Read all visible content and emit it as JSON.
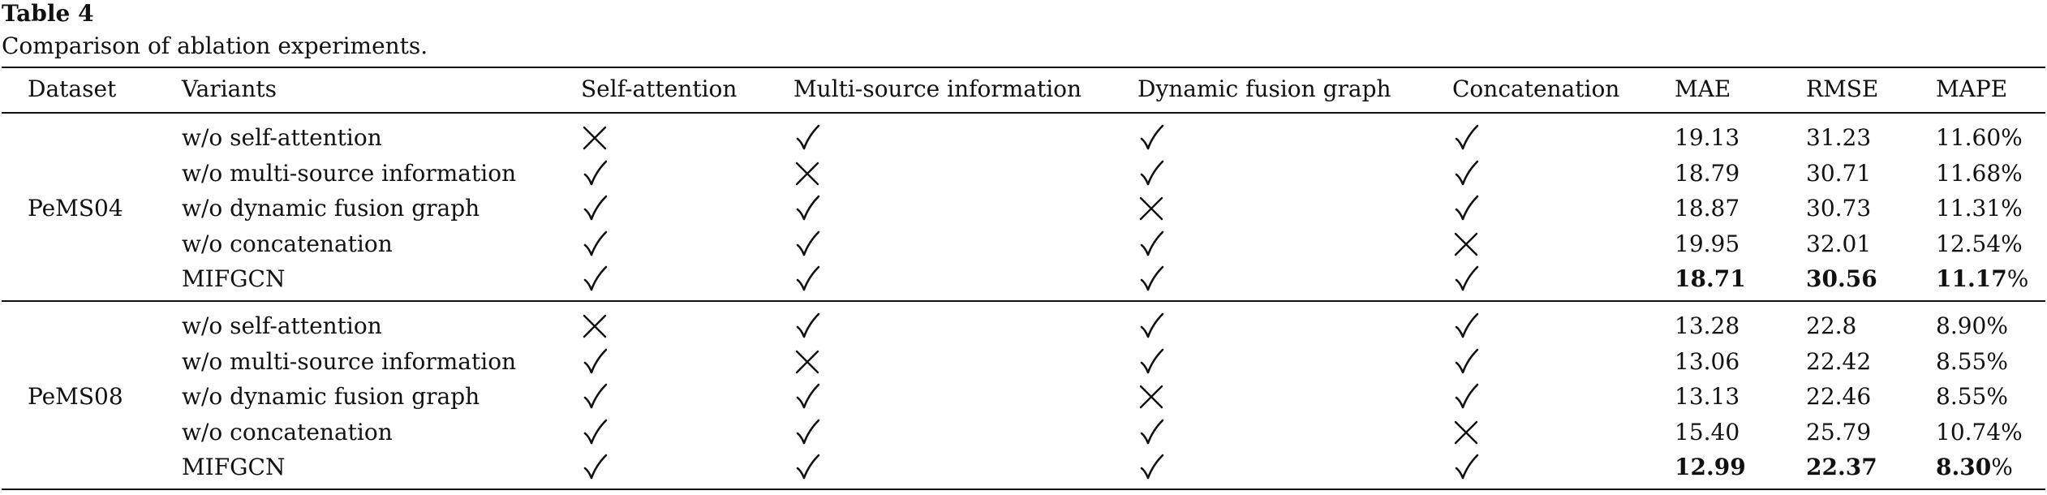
{
  "title": "Table 4",
  "caption": "Comparison of ablation experiments.",
  "headers": [
    "Dataset",
    "Variants",
    "Self-attention",
    "Multi-source information",
    "Dynamic fusion graph",
    "Concatenation",
    "MAE",
    "RMSE",
    "MAPE"
  ],
  "groups": [
    {
      "dataset": "PeMS04",
      "rows": [
        {
          "variant": "w/o self-attention",
          "marks": [
            "cross",
            "check",
            "check",
            "check"
          ],
          "mae": "19.13",
          "rmse": "31.23",
          "mape": "11.60%",
          "best": false
        },
        {
          "variant": "w/o multi-source information",
          "marks": [
            "check",
            "cross",
            "check",
            "check"
          ],
          "mae": "18.79",
          "rmse": "30.71",
          "mape": "11.68%",
          "best": false
        },
        {
          "variant": "w/o dynamic fusion graph",
          "marks": [
            "check",
            "check",
            "cross",
            "check"
          ],
          "mae": "18.87",
          "rmse": "30.73",
          "mape": "11.31%",
          "best": false
        },
        {
          "variant": "w/o concatenation",
          "marks": [
            "check",
            "check",
            "check",
            "cross"
          ],
          "mae": "19.95",
          "rmse": "32.01",
          "mape": "12.54%",
          "best": false
        },
        {
          "variant": "MIFGCN",
          "marks": [
            "check",
            "check",
            "check",
            "check"
          ],
          "mae": "18.71",
          "rmse": "30.56",
          "mape_value": "11.17",
          "mape_unit": "%",
          "best": true
        }
      ]
    },
    {
      "dataset": "PeMS08",
      "rows": [
        {
          "variant": "w/o self-attention",
          "marks": [
            "cross",
            "check",
            "check",
            "check"
          ],
          "mae": "13.28",
          "rmse": "22.8",
          "mape": "8.90%",
          "best": false
        },
        {
          "variant": "w/o multi-source information",
          "marks": [
            "check",
            "cross",
            "check",
            "check"
          ],
          "mae": "13.06",
          "rmse": "22.42",
          "mape": "8.55%",
          "best": false
        },
        {
          "variant": "w/o dynamic fusion graph",
          "marks": [
            "check",
            "check",
            "cross",
            "check"
          ],
          "mae": "13.13",
          "rmse": "22.46",
          "mape": "8.55%",
          "best": false
        },
        {
          "variant": "w/o concatenation",
          "marks": [
            "check",
            "check",
            "check",
            "cross"
          ],
          "mae": "15.40",
          "rmse": "25.79",
          "mape": "10.74%",
          "best": false
        },
        {
          "variant": "MIFGCN",
          "marks": [
            "check",
            "check",
            "check",
            "check"
          ],
          "mae": "12.99",
          "rmse": "22.37",
          "mape_value": "8.30",
          "mape_unit": "%",
          "best": true
        }
      ]
    }
  ]
}
